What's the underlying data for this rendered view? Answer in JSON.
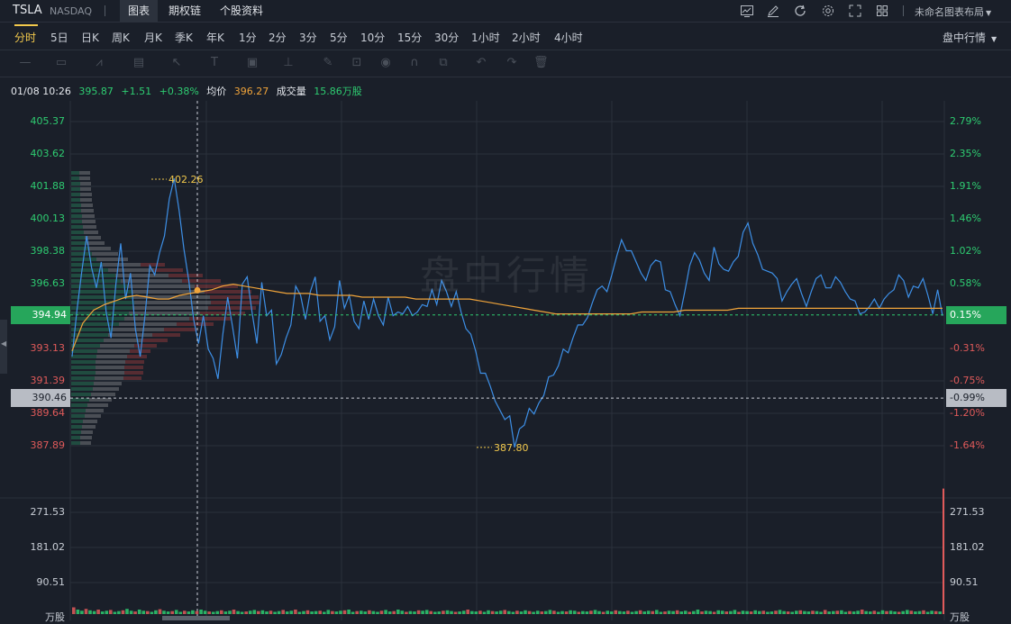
{
  "header": {
    "symbol": "TSLA",
    "exchange": "NASDAQ",
    "tabs": [
      "图表",
      "期权链",
      "个股资料"
    ],
    "active_tab": 0,
    "layout_label": "未命名图表布局",
    "icons": [
      "chart-type-icon",
      "edit-icon",
      "refresh-icon",
      "settings-icon",
      "fullscreen-icon",
      "grid-layout-icon"
    ]
  },
  "periods": {
    "items": [
      "分时",
      "5日",
      "日K",
      "周K",
      "月K",
      "季K",
      "年K",
      "1分",
      "2分",
      "3分",
      "5分",
      "10分",
      "15分",
      "30分",
      "1小时",
      "2小时",
      "4小时"
    ],
    "active": 0,
    "mode_label": "盘中行情"
  },
  "drawing_tools": [
    "line-tool-icon",
    "rect-tool-icon",
    "pattern-tool-icon",
    "fib-tool-icon",
    "arrow-tool-icon",
    "text-tool-icon",
    "image-tool-icon",
    "measure-tool-icon",
    "brush-icon",
    "lock-icon",
    "eye-icon",
    "magnet-icon",
    "clone-icon",
    "undo-icon",
    "redo-icon",
    "trash-icon"
  ],
  "info": {
    "datetime": "01/08 10:26",
    "price": "395.87",
    "change": "+1.51",
    "change_pct": "+0.38%",
    "avg_label": "均价",
    "avg_value": "396.27",
    "vol_label": "成交量",
    "vol_value": "15.86万股"
  },
  "watermark": "盘中行情",
  "colors": {
    "up": "#2ecc71",
    "down": "#e05a5a",
    "price_line": "#3d8fe6",
    "avg_line": "#f0a43a",
    "highlight": "#f2c94c"
  },
  "chart_data": {
    "type": "line",
    "ylim": [
      387.0,
      406.0
    ],
    "left_axis": [
      "405.37",
      "403.62",
      "401.88",
      "400.13",
      "398.38",
      "396.63",
      "393.13",
      "391.39",
      "389.64",
      "387.89"
    ],
    "right_axis": [
      "2.79%",
      "2.35%",
      "1.91%",
      "1.46%",
      "1.02%",
      "0.58%",
      "-0.31%",
      "-0.75%",
      "-1.20%",
      "-1.64%"
    ],
    "left_axis_colors": [
      "up",
      "up",
      "up",
      "up",
      "up",
      "up",
      "down",
      "down",
      "down",
      "down"
    ],
    "current_price_tag": "394.94",
    "current_pct_tag": "0.15%",
    "crosshair_price_tag": "390.46",
    "crosshair_pct_tag": "-0.99%",
    "high_label": "402.26",
    "low_label": "387.80",
    "series": [
      {
        "values": [
          392.7,
          395.2,
          397.3,
          399.2,
          397.5,
          396.4,
          397.8,
          395.1,
          393.7,
          396.6,
          398.8,
          395.8,
          397.2,
          394.2,
          392.7,
          394.9,
          397.6,
          397.1,
          398.3,
          399.2,
          401.2,
          402.3,
          400.6,
          398.5,
          396.8,
          394.7,
          393.4,
          394.9,
          393.1,
          392.6,
          391.5,
          393.9,
          395.9,
          394.3,
          392.6,
          396.6,
          397.0,
          395.1,
          393.4,
          396.7,
          394.9,
          395.2,
          392.3,
          392.8,
          393.7,
          394.4,
          396.5,
          396.0,
          394.7,
          396.2,
          397.0,
          394.6,
          394.9,
          393.6,
          394.3,
          396.8,
          395.3,
          396.0,
          394.6,
          394.2,
          395.7,
          394.7,
          395.8,
          394.9,
          394.4,
          395.9,
          394.9,
          395.1,
          395.0,
          395.4,
          394.9,
          395.1,
          395.5,
          395.4,
          396.3,
          395.5,
          396.8,
          396.2,
          395.4,
          396.2,
          395.1,
          394.2,
          393.9,
          393.0,
          391.8,
          391.8,
          391.1,
          390.3,
          389.8,
          389.3,
          389.5,
          387.8,
          388.8,
          389.0,
          389.9,
          389.6,
          390.2,
          390.6,
          391.6,
          391.7,
          392.2,
          393.1,
          392.9,
          393.7,
          394.4,
          394.4,
          394.8,
          395.6,
          396.3,
          396.5,
          396.2,
          397.1,
          398.1,
          399.0,
          398.4,
          398.4,
          397.8,
          397.2,
          396.8,
          397.6,
          397.9,
          397.8,
          396.3,
          396.2,
          395.5,
          394.9,
          396.2,
          397.6,
          398.3,
          397.9,
          397.2,
          396.8,
          398.6,
          397.7,
          397.4,
          397.3,
          397.8,
          398.1,
          399.4,
          399.9,
          398.8,
          398.2,
          397.4,
          397.3,
          397.2,
          396.9,
          395.7,
          396.2,
          396.6,
          396.9,
          396.1,
          395.4,
          396.2,
          396.9,
          397.1,
          396.4,
          396.4,
          397.0,
          396.7,
          396.2,
          395.8,
          395.7,
          395.0,
          395.1,
          395.4,
          395.8,
          395.3,
          395.8,
          396.1,
          396.3,
          397.1,
          396.8,
          395.9,
          396.5,
          396.4,
          396.9,
          396.0,
          395.0,
          396.3,
          394.9
        ]
      },
      {
        "values": [
          393.0,
          394.5,
          395.2,
          395.5,
          395.7,
          395.9,
          396.0,
          395.9,
          395.8,
          395.8,
          396.0,
          396.1,
          396.2,
          396.3,
          396.5,
          396.6,
          396.5,
          396.4,
          396.3,
          396.2,
          396.1,
          396.1,
          396.1,
          396.0,
          396.0,
          396.0,
          396.0,
          395.9,
          395.9,
          395.9,
          395.9,
          395.9,
          395.8,
          395.8,
          395.8,
          395.8,
          395.8,
          395.8,
          395.7,
          395.6,
          395.5,
          395.4,
          395.3,
          395.2,
          395.1,
          395.0,
          395.0,
          395.0,
          395.0,
          395.0,
          395.0,
          395.0,
          395.0,
          395.1,
          395.1,
          395.1,
          395.1,
          395.2,
          395.2,
          395.2,
          395.2,
          395.2,
          395.3,
          395.3,
          395.3,
          395.3,
          395.3,
          395.3,
          395.3,
          395.3,
          395.3,
          395.3,
          395.3,
          395.3,
          395.3,
          395.3,
          395.3,
          395.3,
          395.3,
          395.3,
          395.3,
          395.3
        ]
      }
    ]
  },
  "volume_data": {
    "type": "bar",
    "axis": [
      "271.53",
      "181.02",
      "90.51"
    ],
    "unit_label": "万股",
    "ylim": [
      0,
      310
    ],
    "last_value": 335,
    "values": [
      18,
      12,
      9,
      14,
      10,
      8,
      12,
      7,
      9,
      11,
      6,
      8,
      10,
      14,
      9,
      7,
      12,
      9,
      8,
      6,
      10,
      13,
      9,
      7,
      8,
      11,
      6,
      9,
      7,
      10,
      8,
      12,
      9,
      7,
      6,
      8,
      10,
      7,
      9,
      12,
      8,
      6,
      7,
      9,
      11,
      8,
      10,
      7,
      9,
      6,
      8,
      11,
      7,
      9,
      12,
      6,
      8,
      10,
      7,
      8,
      9,
      6,
      11,
      8,
      7,
      9,
      10,
      12,
      6,
      8,
      9,
      7,
      10,
      8,
      6,
      9,
      11,
      7,
      8,
      12,
      9,
      6,
      8,
      7,
      10,
      9,
      11,
      8,
      6,
      7,
      9,
      10,
      8,
      6,
      7,
      9,
      12,
      8,
      7,
      9,
      6,
      10,
      8,
      7,
      9,
      11,
      8,
      6,
      9,
      7,
      10,
      8,
      6,
      9,
      7,
      8,
      11,
      9,
      6,
      8,
      7,
      10,
      9,
      6,
      8,
      7,
      9,
      11,
      8,
      6,
      9,
      7,
      10,
      8,
      7,
      9,
      6,
      8,
      10,
      7,
      9,
      8,
      11,
      6,
      7,
      9,
      8,
      10,
      7,
      9,
      6,
      8,
      12,
      7,
      9,
      8,
      6,
      10,
      9,
      7,
      8,
      11,
      6,
      9,
      8,
      7,
      10,
      8,
      9,
      6,
      7,
      9,
      11,
      8,
      7,
      6,
      9,
      10,
      8,
      7,
      9,
      8,
      6,
      11,
      7,
      8,
      9,
      10,
      6,
      8,
      7,
      9,
      12,
      8,
      7,
      9,
      6,
      10,
      8,
      9,
      7,
      6,
      8,
      11,
      9,
      7,
      8,
      10,
      6,
      9,
      8,
      7
    ]
  }
}
